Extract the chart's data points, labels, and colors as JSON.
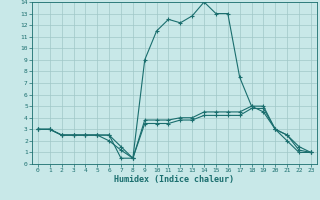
{
  "xlabel": "Humidex (Indice chaleur)",
  "bg_color": "#c8e8e8",
  "line_color": "#1a6e6e",
  "grid_color": "#a0c8c8",
  "xlim": [
    -0.5,
    23.5
  ],
  "ylim": [
    0,
    14
  ],
  "xticks": [
    0,
    1,
    2,
    3,
    4,
    5,
    6,
    7,
    8,
    9,
    10,
    11,
    12,
    13,
    14,
    15,
    16,
    17,
    18,
    19,
    20,
    21,
    22,
    23
  ],
  "yticks": [
    0,
    1,
    2,
    3,
    4,
    5,
    6,
    7,
    8,
    9,
    10,
    11,
    12,
    13,
    14
  ],
  "series": [
    {
      "x": [
        0,
        1,
        2,
        3,
        4,
        5,
        6,
        7,
        8,
        9,
        10,
        11,
        12,
        13,
        14,
        15,
        16,
        17,
        18,
        19,
        20,
        21,
        22,
        23
      ],
      "y": [
        3,
        3,
        2.5,
        2.5,
        2.5,
        2.5,
        2.5,
        0.5,
        0.5,
        9,
        11.5,
        12.5,
        12.2,
        12.8,
        14,
        13,
        13,
        7.5,
        5,
        4.5,
        3,
        2,
        1,
        1
      ]
    },
    {
      "x": [
        0,
        1,
        2,
        3,
        4,
        5,
        6,
        7,
        8,
        9,
        10,
        11,
        12,
        13,
        14,
        15,
        16,
        17,
        18,
        19,
        20,
        21,
        22,
        23
      ],
      "y": [
        3,
        3,
        2.5,
        2.5,
        2.5,
        2.5,
        2.5,
        1.5,
        0.5,
        3.8,
        3.8,
        3.8,
        4,
        4,
        4.5,
        4.5,
        4.5,
        4.5,
        5,
        5,
        3,
        2.5,
        1.5,
        1
      ]
    },
    {
      "x": [
        0,
        1,
        2,
        3,
        4,
        5,
        6,
        7,
        8,
        9,
        10,
        11,
        12,
        13,
        14,
        15,
        16,
        17,
        18,
        19,
        20,
        21,
        22,
        23
      ],
      "y": [
        3,
        3,
        2.5,
        2.5,
        2.5,
        2.5,
        2,
        1.2,
        0.5,
        3.5,
        3.5,
        3.5,
        3.8,
        3.8,
        4.2,
        4.2,
        4.2,
        4.2,
        4.8,
        4.8,
        3,
        2.5,
        1.2,
        1
      ]
    }
  ]
}
